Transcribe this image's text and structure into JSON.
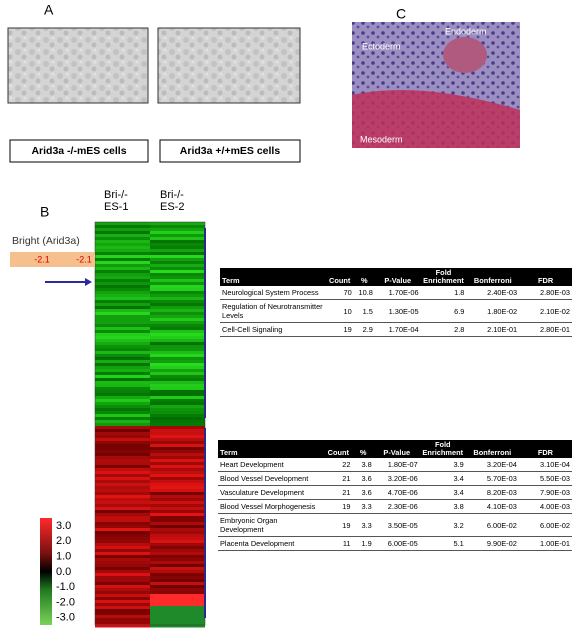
{
  "panel_a": {
    "label": "A",
    "captions": [
      "Arid3a -/-mES cells",
      "Arid3a +/+mES cells"
    ]
  },
  "panel_c": {
    "label": "C",
    "labels": [
      "Ectoderm",
      "Endoderm",
      "Mesoderm"
    ]
  },
  "panel_b": {
    "label": "B",
    "columns": [
      "Bri-/- ES-1",
      "Bri-/- ES-2"
    ],
    "gene": "Bright (Arid3a)",
    "gene_values": [
      "-2.1",
      "-2.1"
    ],
    "scale_labels": [
      "3.0",
      "2.0",
      "1.0",
      "0.0",
      "-1.0",
      "-2.0",
      "-3.0"
    ],
    "tables": [
      {
        "header": [
          "Term",
          "Count",
          "%",
          "P-Value",
          "Fold Enrichment",
          "Bonferroni",
          "FDR"
        ],
        "rows": [
          [
            "Neurological System Process",
            "70",
            "10.8",
            "1.70E-06",
            "1.8",
            "2.40E-03",
            "2.80E-03"
          ],
          [
            "Regulation of Neurotransmitter Levels",
            "10",
            "1.5",
            "1.30E-05",
            "6.9",
            "1.80E-02",
            "2.10E-02"
          ],
          [
            "Cell-Cell Signaling",
            "19",
            "2.9",
            "1.70E-04",
            "2.8",
            "2.10E-01",
            "2.80E-01"
          ]
        ]
      },
      {
        "header": [
          "Term",
          "Count",
          "%",
          "P-Value",
          "Fold Enrichment",
          "Bonferroni",
          "FDR"
        ],
        "rows": [
          [
            "Heart Development",
            "22",
            "3.8",
            "1.80E-07",
            "3.9",
            "3.20E-04",
            "3.10E-04"
          ],
          [
            "Blood Vessel Development",
            "21",
            "3.6",
            "3.20E-06",
            "3.4",
            "5.70E-03",
            "5.50E-03"
          ],
          [
            "Vasculature Development",
            "21",
            "3.6",
            "4.70E-06",
            "3.4",
            "8.20E-03",
            "7.90E-03"
          ],
          [
            "Blood Vessel Morphogenesis",
            "19",
            "3.3",
            "2.30E-06",
            "3.8",
            "4.10E-03",
            "4.00E-03"
          ],
          [
            "Embryonic Organ Development",
            "19",
            "3.3",
            "3.50E-05",
            "3.2",
            "6.00E-02",
            "6.00E-02"
          ],
          [
            "Placenta Development",
            "11",
            "1.9",
            "6.00E-05",
            "5.1",
            "9.90E-02",
            "1.00E-01"
          ]
        ]
      }
    ]
  }
}
